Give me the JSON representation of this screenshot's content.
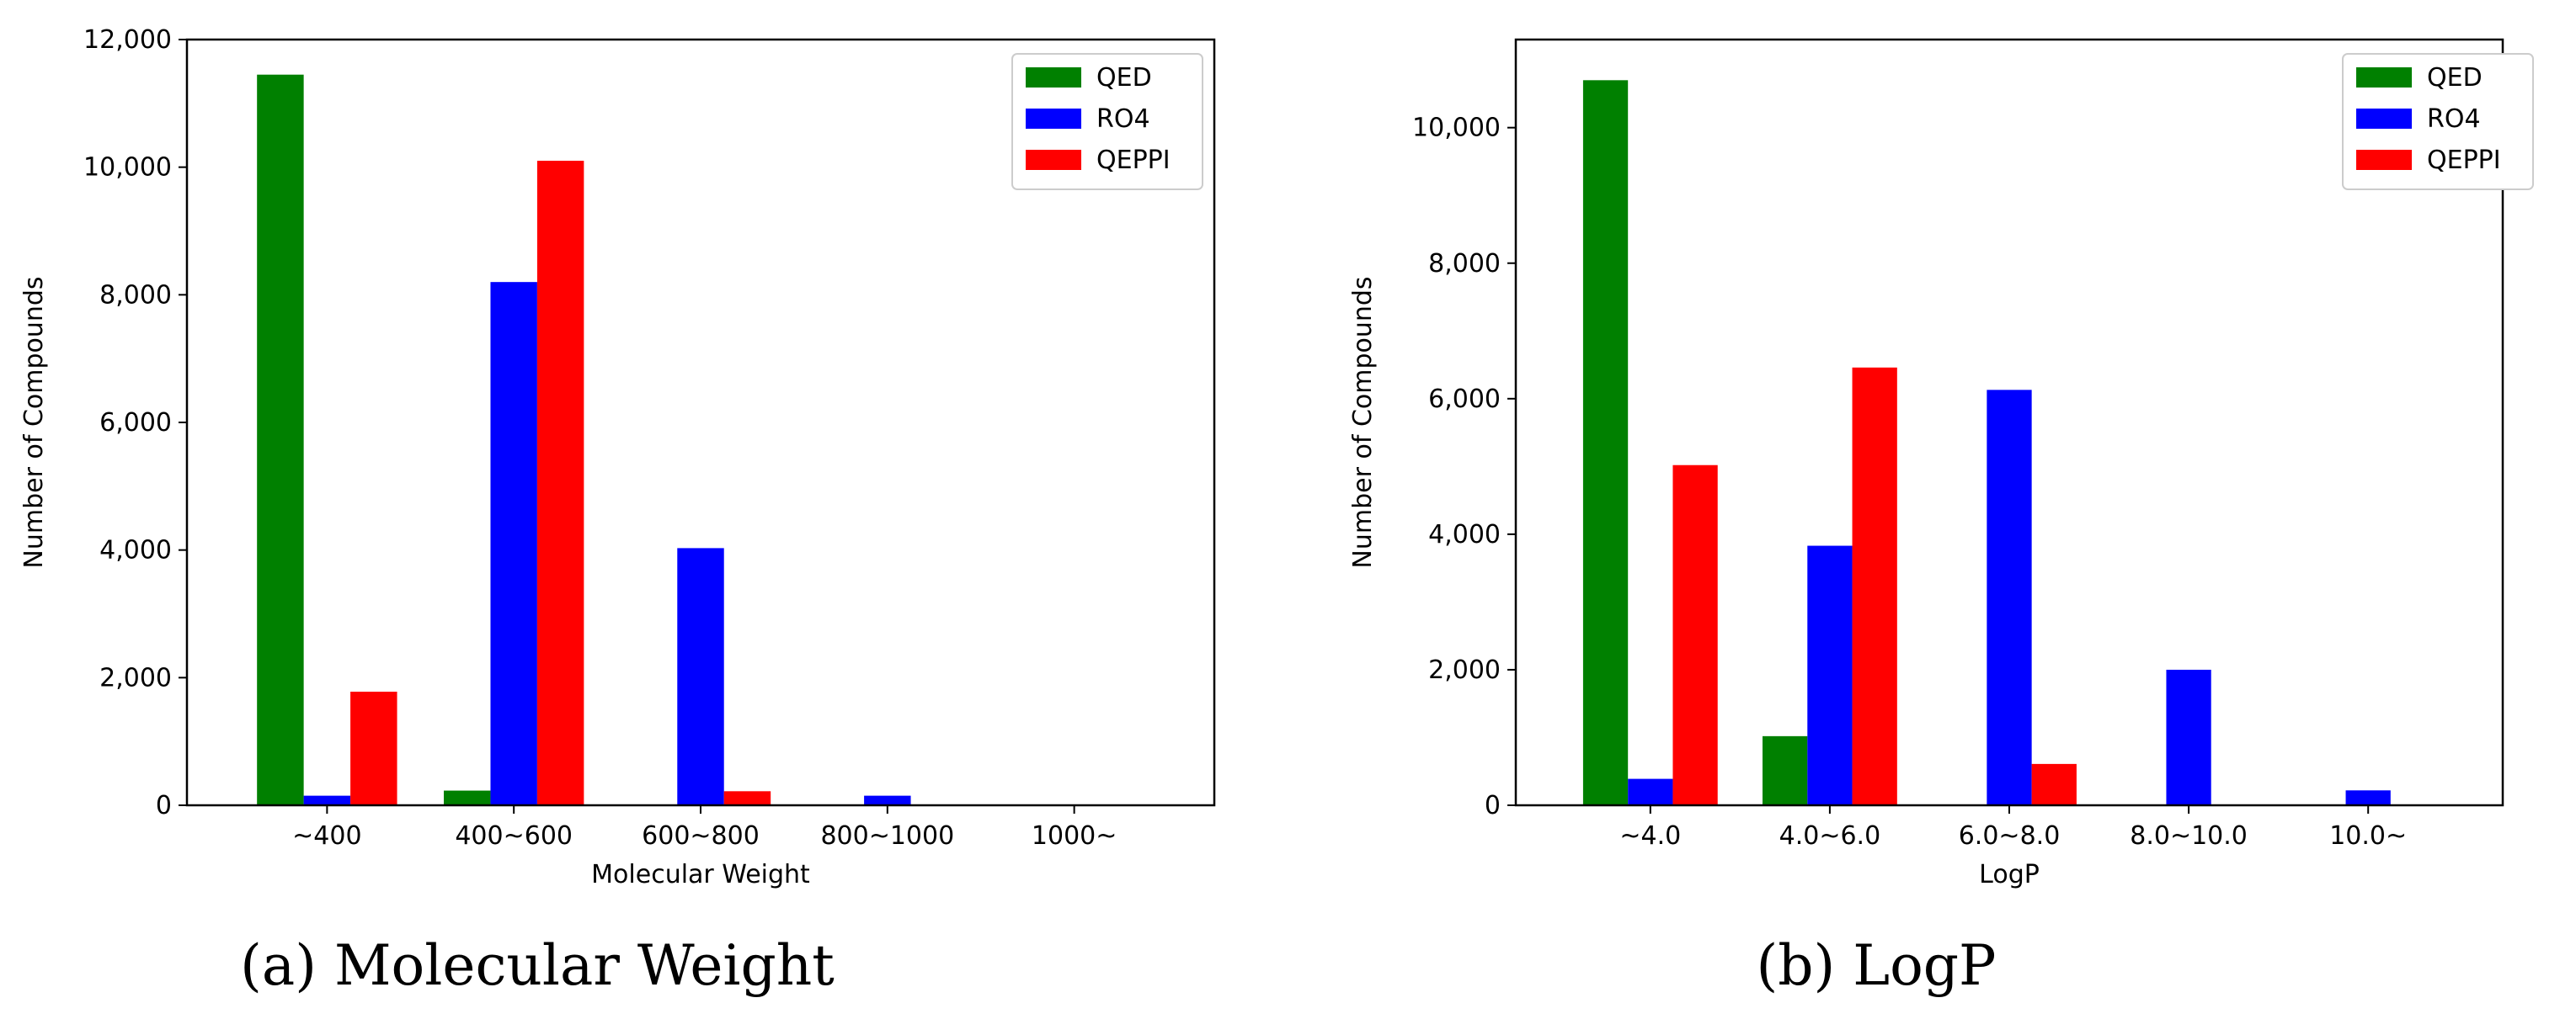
{
  "chart_data": [
    {
      "type": "bar",
      "caption": "(a) Molecular Weight",
      "xlabel": "Molecular Weight",
      "ylabel": "Number of Compounds",
      "categories": [
        "~400",
        "400~600",
        "600~800",
        "800~1000",
        "1000~"
      ],
      "ylim": [
        0,
        12000
      ],
      "yticks": [
        0,
        2000,
        4000,
        6000,
        8000,
        10000,
        12000
      ],
      "ytick_labels": [
        "0",
        "2,000",
        "4,000",
        "6,000",
        "8,000",
        "10,000",
        "12,000"
      ],
      "legend_position": "top-right",
      "grid": false,
      "series": [
        {
          "name": "QED",
          "color": "#008000",
          "values": [
            11450,
            230,
            0,
            0,
            0
          ]
        },
        {
          "name": "RO4",
          "color": "#0000ff",
          "values": [
            150,
            8200,
            4030,
            150,
            0
          ]
        },
        {
          "name": "QEPPI",
          "color": "#ff0000",
          "values": [
            1780,
            10100,
            220,
            0,
            0
          ]
        }
      ]
    },
    {
      "type": "bar",
      "caption": "(b) LogP",
      "xlabel": "LogP",
      "ylabel": "Number of Compounds",
      "categories": [
        "~4.0",
        "4.0~6.0",
        "6.0~8.0",
        "8.0~10.0",
        "10.0~"
      ],
      "ylim": [
        0,
        11300
      ],
      "yticks": [
        0,
        2000,
        4000,
        6000,
        8000,
        10000
      ],
      "ytick_labels": [
        "0",
        "2,000",
        "4,000",
        "6,000",
        "8,000",
        "10,000"
      ],
      "legend_position": "top-right",
      "grid": false,
      "series": [
        {
          "name": "QED",
          "color": "#008000",
          "values": [
            10700,
            1020,
            0,
            0,
            0
          ]
        },
        {
          "name": "RO4",
          "color": "#0000ff",
          "values": [
            390,
            3830,
            6130,
            2000,
            220
          ]
        },
        {
          "name": "QEPPI",
          "color": "#ff0000",
          "values": [
            5020,
            6460,
            610,
            0,
            0
          ]
        }
      ]
    }
  ]
}
